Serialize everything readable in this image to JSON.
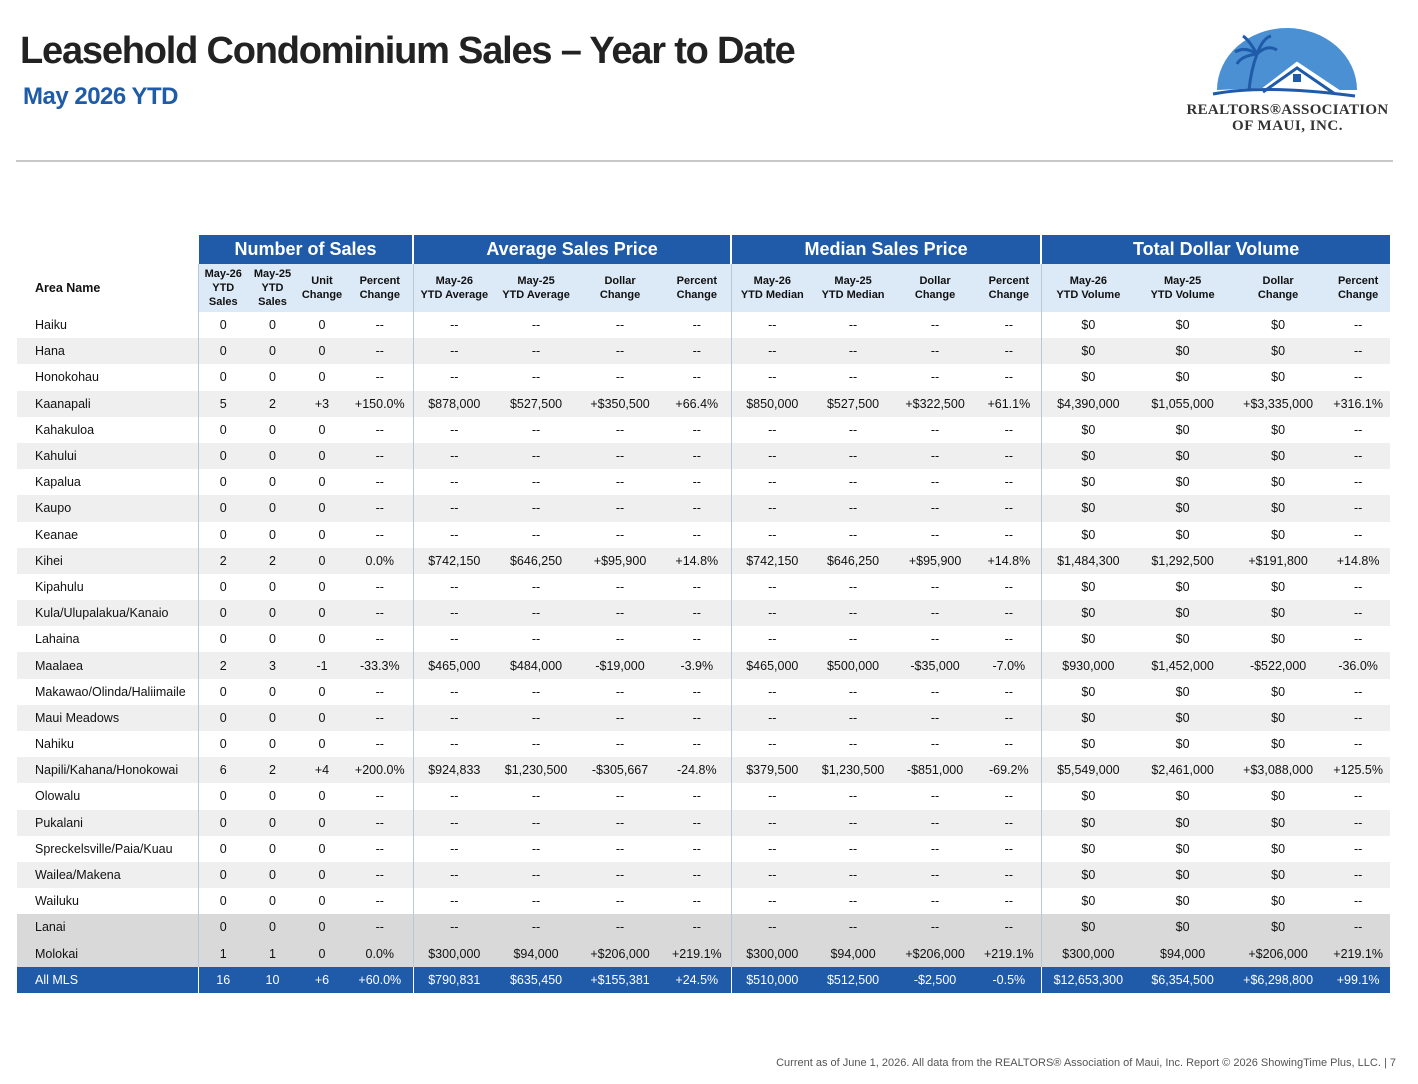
{
  "header": {
    "title": "Leasehold Condominium Sales – Year to Date",
    "subtitle": "May 2026 YTD"
  },
  "logo": {
    "line1": "REALTORS®ASSOCIATION",
    "line2": "OF MAUI, INC.",
    "colors": {
      "arc": "#4a90d2",
      "palm": "#1f5ba9"
    }
  },
  "table": {
    "groups": [
      "Number of Sales",
      "Average Sales Price",
      "Median Sales Price",
      "Total Dollar Volume"
    ],
    "area_header": "Area Name",
    "col_headers": [
      [
        "May-26",
        "YTD",
        "Sales"
      ],
      [
        "May-25",
        "YTD",
        "Sales"
      ],
      [
        "Unit",
        "Change"
      ],
      [
        "Percent",
        "Change"
      ],
      [
        "May-26",
        "YTD Average"
      ],
      [
        "May-25",
        "YTD Average"
      ],
      [
        "Dollar",
        "Change"
      ],
      [
        "Percent",
        "Change"
      ],
      [
        "May-26",
        "YTD Median"
      ],
      [
        "May-25",
        "YTD Median"
      ],
      [
        "Dollar",
        "Change"
      ],
      [
        "Percent",
        "Change"
      ],
      [
        "May-26",
        "YTD Volume"
      ],
      [
        "May-25",
        "YTD Volume"
      ],
      [
        "Dollar",
        "Change"
      ],
      [
        "Percent",
        "Change"
      ]
    ],
    "rows": [
      {
        "area": "Haiku",
        "cells": [
          "0",
          "0",
          "0",
          "--",
          "--",
          "--",
          "--",
          "--",
          "--",
          "--",
          "--",
          "--",
          "$0",
          "$0",
          "$0",
          "--"
        ]
      },
      {
        "area": "Hana",
        "cells": [
          "0",
          "0",
          "0",
          "--",
          "--",
          "--",
          "--",
          "--",
          "--",
          "--",
          "--",
          "--",
          "$0",
          "$0",
          "$0",
          "--"
        ]
      },
      {
        "area": "Honokohau",
        "cells": [
          "0",
          "0",
          "0",
          "--",
          "--",
          "--",
          "--",
          "--",
          "--",
          "--",
          "--",
          "--",
          "$0",
          "$0",
          "$0",
          "--"
        ]
      },
      {
        "area": "Kaanapali",
        "cells": [
          "5",
          "2",
          "+3",
          "+150.0%",
          "$878,000",
          "$527,500",
          "+$350,500",
          "+66.4%",
          "$850,000",
          "$527,500",
          "+$322,500",
          "+61.1%",
          "$4,390,000",
          "$1,055,000",
          "+$3,335,000",
          "+316.1%"
        ]
      },
      {
        "area": "Kahakuloa",
        "cells": [
          "0",
          "0",
          "0",
          "--",
          "--",
          "--",
          "--",
          "--",
          "--",
          "--",
          "--",
          "--",
          "$0",
          "$0",
          "$0",
          "--"
        ]
      },
      {
        "area": "Kahului",
        "cells": [
          "0",
          "0",
          "0",
          "--",
          "--",
          "--",
          "--",
          "--",
          "--",
          "--",
          "--",
          "--",
          "$0",
          "$0",
          "$0",
          "--"
        ]
      },
      {
        "area": "Kapalua",
        "cells": [
          "0",
          "0",
          "0",
          "--",
          "--",
          "--",
          "--",
          "--",
          "--",
          "--",
          "--",
          "--",
          "$0",
          "$0",
          "$0",
          "--"
        ]
      },
      {
        "area": "Kaupo",
        "cells": [
          "0",
          "0",
          "0",
          "--",
          "--",
          "--",
          "--",
          "--",
          "--",
          "--",
          "--",
          "--",
          "$0",
          "$0",
          "$0",
          "--"
        ]
      },
      {
        "area": "Keanae",
        "cells": [
          "0",
          "0",
          "0",
          "--",
          "--",
          "--",
          "--",
          "--",
          "--",
          "--",
          "--",
          "--",
          "$0",
          "$0",
          "$0",
          "--"
        ]
      },
      {
        "area": "Kihei",
        "cells": [
          "2",
          "2",
          "0",
          "0.0%",
          "$742,150",
          "$646,250",
          "+$95,900",
          "+14.8%",
          "$742,150",
          "$646,250",
          "+$95,900",
          "+14.8%",
          "$1,484,300",
          "$1,292,500",
          "+$191,800",
          "+14.8%"
        ]
      },
      {
        "area": "Kipahulu",
        "cells": [
          "0",
          "0",
          "0",
          "--",
          "--",
          "--",
          "--",
          "--",
          "--",
          "--",
          "--",
          "--",
          "$0",
          "$0",
          "$0",
          "--"
        ]
      },
      {
        "area": "Kula/Ulupalakua/Kanaio",
        "cells": [
          "0",
          "0",
          "0",
          "--",
          "--",
          "--",
          "--",
          "--",
          "--",
          "--",
          "--",
          "--",
          "$0",
          "$0",
          "$0",
          "--"
        ]
      },
      {
        "area": "Lahaina",
        "cells": [
          "0",
          "0",
          "0",
          "--",
          "--",
          "--",
          "--",
          "--",
          "--",
          "--",
          "--",
          "--",
          "$0",
          "$0",
          "$0",
          "--"
        ]
      },
      {
        "area": "Maalaea",
        "cells": [
          "2",
          "3",
          "-1",
          "-33.3%",
          "$465,000",
          "$484,000",
          "-$19,000",
          "-3.9%",
          "$465,000",
          "$500,000",
          "-$35,000",
          "-7.0%",
          "$930,000",
          "$1,452,000",
          "-$522,000",
          "-36.0%"
        ]
      },
      {
        "area": "Makawao/Olinda/Haliimaile",
        "cells": [
          "0",
          "0",
          "0",
          "--",
          "--",
          "--",
          "--",
          "--",
          "--",
          "--",
          "--",
          "--",
          "$0",
          "$0",
          "$0",
          "--"
        ]
      },
      {
        "area": "Maui Meadows",
        "cells": [
          "0",
          "0",
          "0",
          "--",
          "--",
          "--",
          "--",
          "--",
          "--",
          "--",
          "--",
          "--",
          "$0",
          "$0",
          "$0",
          "--"
        ]
      },
      {
        "area": "Nahiku",
        "cells": [
          "0",
          "0",
          "0",
          "--",
          "--",
          "--",
          "--",
          "--",
          "--",
          "--",
          "--",
          "--",
          "$0",
          "$0",
          "$0",
          "--"
        ]
      },
      {
        "area": "Napili/Kahana/Honokowai",
        "cells": [
          "6",
          "2",
          "+4",
          "+200.0%",
          "$924,833",
          "$1,230,500",
          "-$305,667",
          "-24.8%",
          "$379,500",
          "$1,230,500",
          "-$851,000",
          "-69.2%",
          "$5,549,000",
          "$2,461,000",
          "+$3,088,000",
          "+125.5%"
        ]
      },
      {
        "area": "Olowalu",
        "cells": [
          "0",
          "0",
          "0",
          "--",
          "--",
          "--",
          "--",
          "--",
          "--",
          "--",
          "--",
          "--",
          "$0",
          "$0",
          "$0",
          "--"
        ]
      },
      {
        "area": "Pukalani",
        "cells": [
          "0",
          "0",
          "0",
          "--",
          "--",
          "--",
          "--",
          "--",
          "--",
          "--",
          "--",
          "--",
          "$0",
          "$0",
          "$0",
          "--"
        ]
      },
      {
        "area": "Spreckelsville/Paia/Kuau",
        "cells": [
          "0",
          "0",
          "0",
          "--",
          "--",
          "--",
          "--",
          "--",
          "--",
          "--",
          "--",
          "--",
          "$0",
          "$0",
          "$0",
          "--"
        ]
      },
      {
        "area": "Wailea/Makena",
        "cells": [
          "0",
          "0",
          "0",
          "--",
          "--",
          "--",
          "--",
          "--",
          "--",
          "--",
          "--",
          "--",
          "$0",
          "$0",
          "$0",
          "--"
        ]
      },
      {
        "area": "Wailuku",
        "cells": [
          "0",
          "0",
          "0",
          "--",
          "--",
          "--",
          "--",
          "--",
          "--",
          "--",
          "--",
          "--",
          "$0",
          "$0",
          "$0",
          "--"
        ]
      },
      {
        "area": "Lanai",
        "cells": [
          "0",
          "0",
          "0",
          "--",
          "--",
          "--",
          "--",
          "--",
          "--",
          "--",
          "--",
          "--",
          "$0",
          "$0",
          "$0",
          "--"
        ],
        "style": "gray"
      },
      {
        "area": "Molokai",
        "cells": [
          "1",
          "1",
          "0",
          "0.0%",
          "$300,000",
          "$94,000",
          "+$206,000",
          "+219.1%",
          "$300,000",
          "$94,000",
          "+$206,000",
          "+219.1%",
          "$300,000",
          "$94,000",
          "+$206,000",
          "+219.1%"
        ],
        "style": "gray"
      },
      {
        "area": "All MLS",
        "cells": [
          "16",
          "10",
          "+6",
          "+60.0%",
          "$790,831",
          "$635,450",
          "+$155,381",
          "+24.5%",
          "$510,000",
          "$512,500",
          "-$2,500",
          "-0.5%",
          "$12,653,300",
          "$6,354,500",
          "+$6,298,800",
          "+99.1%"
        ],
        "style": "total"
      }
    ]
  },
  "footer": "Current as of June 1, 2026. All data from the REALTORS® Association of Maui, Inc. Report © 2026 ShowingTime Plus, LLC.  |  7"
}
